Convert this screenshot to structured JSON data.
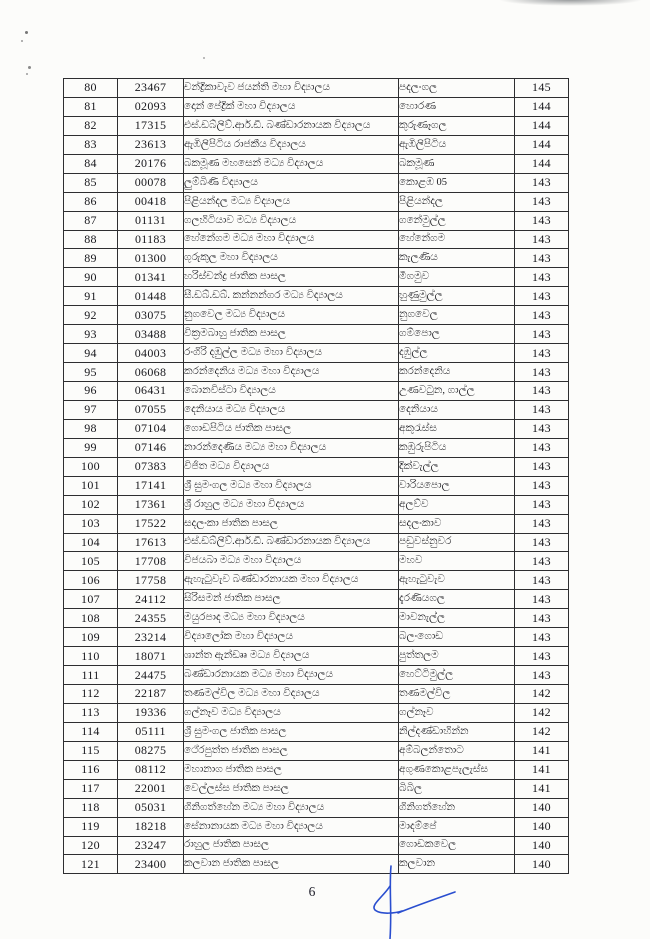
{
  "page": {
    "number": "6"
  },
  "signature": {
    "color": "#2a4ecf"
  },
  "colors": {
    "ink": "#17171c",
    "border": "#2e2e30",
    "paper": "#fcfcfa"
  },
  "table": {
    "columns": [
      "serial",
      "code",
      "school",
      "town",
      "marks"
    ],
    "rows": [
      {
        "no": "80",
        "code": "23467",
        "school": "චන්ද්‍රිකාවැව ජයන්ති මහා විද්‍යාලය",
        "town": "පදලංගල",
        "marks": "145"
      },
      {
        "no": "81",
        "code": "02093",
        "school": "දොන් පේද්‍රික් මහා විද්‍යාලය",
        "town": "හොරණ",
        "marks": "144"
      },
      {
        "no": "82",
        "code": "17315",
        "school": "එස්.ඩබ්ලිව්.ආර්.ඩී. බණ්ඩාරනායක විද්‍යාලය",
        "town": "කුරුණෑගල",
        "marks": "144"
      },
      {
        "no": "83",
        "code": "23613",
        "school": "ඇඹිලිපිටිය රාජකීය විද්‍යාලය",
        "town": "ඇඹිලිපිටිය",
        "marks": "144"
      },
      {
        "no": "84",
        "code": "20176",
        "school": "බකමූණ මහසෙන් මධ්‍ය විද්‍යාලය",
        "town": "බකමූණ",
        "marks": "144"
      },
      {
        "no": "85",
        "code": "00078",
        "school": "ලුම්බිණි විද්‍යාලය",
        "town": "කොළඹ 05",
        "marks": "143"
      },
      {
        "no": "86",
        "code": "00418",
        "school": "පිළියන්දල මධ්‍ය විද්‍යාලය",
        "town": "පිළියන්දල",
        "marks": "143"
      },
      {
        "no": "87",
        "code": "01131",
        "school": "ගලහිටියාව මධ්‍ය විද්‍යාලය",
        "town": "ගනේමුල්ල",
        "marks": "143"
      },
      {
        "no": "88",
        "code": "01183",
        "school": "හේනේගම මධ්‍ය මහා විද්‍යාලය",
        "town": "හේනේගම",
        "marks": "143"
      },
      {
        "no": "89",
        "code": "01300",
        "school": "ගුරුකුල මහා විද්‍යාලය",
        "town": "කැලණිය",
        "marks": "143"
      },
      {
        "no": "90",
        "code": "01341",
        "school": "හරිස්චන්ද්‍ර ජාතික පාසල",
        "town": "මීගමුව",
        "marks": "143"
      },
      {
        "no": "91",
        "code": "01448",
        "school": "සී.ඩබ්.ඩබ්. කන්නන්ගර මධ්‍ය විද්‍යාලය",
        "town": "හුණුමුල්ල",
        "marks": "143"
      },
      {
        "no": "92",
        "code": "03075",
        "school": "නුගවෙල මධ්‍ය විද්‍යාලය",
        "town": "නුගවෙල",
        "marks": "143"
      },
      {
        "no": "93",
        "code": "03488",
        "school": "වික්‍රමබාහු ජාතික පාසල",
        "town": "ගම්පොල",
        "marks": "143"
      },
      {
        "no": "94",
        "code": "04003",
        "school": "රංගිරි දඹුල්ල මධ්‍ය මහා විද්‍යාලය",
        "town": "දඹුල්ල",
        "marks": "143"
      },
      {
        "no": "95",
        "code": "06068",
        "school": "කරන්දෙනිය මධ්‍ය මහා විද්‍යාලය",
        "town": "කරන්දෙනිය",
        "marks": "143"
      },
      {
        "no": "96",
        "code": "06431",
        "school": "බොනවිස්ටා විද්‍යාලය",
        "town": "උණවටුන, ගාල්ල",
        "marks": "143"
      },
      {
        "no": "97",
        "code": "07055",
        "school": "දෙනියාය මධ්‍ය විද්‍යාලය",
        "town": "දෙනියාය",
        "marks": "143"
      },
      {
        "no": "98",
        "code": "07104",
        "school": "ගොඩපිටිය ජාතික පාසල",
        "town": "අකුරැස්ස",
        "marks": "143"
      },
      {
        "no": "99",
        "code": "07146",
        "school": "නාරන්දෙණිය මධ්‍ය මහා විද්‍යාලය",
        "town": "කඹුරුපිටිය",
        "marks": "143"
      },
      {
        "no": "100",
        "code": "07383",
        "school": "විජිත මධ්‍ය විද්‍යාලය",
        "town": "දික්වැල්ල",
        "marks": "143"
      },
      {
        "no": "101",
        "code": "17141",
        "school": "ශ්‍රී සුමංගල මධ්‍ය මහා විද්‍යාලය",
        "town": "වාරියපොල",
        "marks": "143"
      },
      {
        "no": "102",
        "code": "17361",
        "school": "ශ්‍රී රාහුල මධ්‍ය මහා විද්‍යාලය",
        "town": "අලව්ව",
        "marks": "143"
      },
      {
        "no": "103",
        "code": "17522",
        "school": "සදලංකා ජාතික පාසල",
        "town": "සදලංකාව",
        "marks": "143"
      },
      {
        "no": "104",
        "code": "17613",
        "school": "එස්.ඩබ්ලිව්.ආර්.ඩී. බණ්ඩාරනායක විද්‍යාලය",
        "town": "පඩුවස්නුවර",
        "marks": "143"
      },
      {
        "no": "105",
        "code": "17708",
        "school": "විජයබා මධ්‍ය මහා විද්‍යාලය",
        "town": "මහව",
        "marks": "143"
      },
      {
        "no": "106",
        "code": "17758",
        "school": "ඇහැටුවැව බණ්ඩාරනායක මහා විද්‍යාලය",
        "town": "ඇහැටුවැව",
        "marks": "143"
      },
      {
        "no": "107",
        "code": "24112",
        "school": "සිරිසමන් ජාතික පාසල",
        "town": "දැරණියගල",
        "marks": "143"
      },
      {
        "no": "108",
        "code": "24355",
        "school": "මයුරපාද මධ්‍ය මහා විද්‍යාලය",
        "town": "මාවනැල්ල",
        "marks": "143"
      },
      {
        "no": "109",
        "code": "23214",
        "school": "විද්‍යාලෝක මහා විද්‍යාලය",
        "town": "බලංගොඩ",
        "marks": "143"
      },
      {
        "no": "110",
        "code": "18071",
        "school": "ශාන්ත ඇන්ඩෲ මධ්‍ය විද්‍යාලය",
        "town": "පුත්තලම",
        "marks": "143"
      },
      {
        "no": "111",
        "code": "24475",
        "school": "බණ්ඩාරනායක මධ්‍ය මහා විද්‍යාලය",
        "town": "හෙට්ටිමුල්ල",
        "marks": "143"
      },
      {
        "no": "112",
        "code": "22187",
        "school": "තණමල්විල මධ්‍ය මහා විද්‍යාලය",
        "town": "තණමල්විල",
        "marks": "142"
      },
      {
        "no": "113",
        "code": "19336",
        "school": "ගල්නෑව මධ්‍ය විද්‍යාලය",
        "town": "ගල්නෑව",
        "marks": "142"
      },
      {
        "no": "114",
        "code": "05111",
        "school": "ශ්‍රී සුමංගල ජාතික පාසල",
        "town": "නිල්දණ්ඩාහින්න",
        "marks": "142"
      },
      {
        "no": "115",
        "code": "08275",
        "school": "ථේරපුත්ත ජාතික පාසල",
        "town": "අම්බලන්තොට",
        "marks": "141"
      },
      {
        "no": "116",
        "code": "08112",
        "school": "මහානාග ජාතික පාසල",
        "town": "අගුණකොළපැලැස්ස",
        "marks": "141"
      },
      {
        "no": "117",
        "code": "22001",
        "school": "වෙල්ලස්ස ජාතික පාසල",
        "town": "බිබිල",
        "marks": "141"
      },
      {
        "no": "118",
        "code": "05031",
        "school": "ගිනිගත්හේන මධ්‍ය මහා විද්‍යාලය",
        "town": "ගිනිගත්හේන",
        "marks": "140"
      },
      {
        "no": "119",
        "code": "18218",
        "school": "සේනානායක මධ්‍ය මහා විද්‍යාලය",
        "town": "මාදම්පේ",
        "marks": "140"
      },
      {
        "no": "120",
        "code": "23247",
        "school": "රාහුල ජාතික පාසල",
        "town": "ගොඩකවෙල",
        "marks": "140"
      },
      {
        "no": "121",
        "code": "23400",
        "school": "කලවාන ජාතික පාසල",
        "town": "කලවාන",
        "marks": "140"
      }
    ]
  }
}
